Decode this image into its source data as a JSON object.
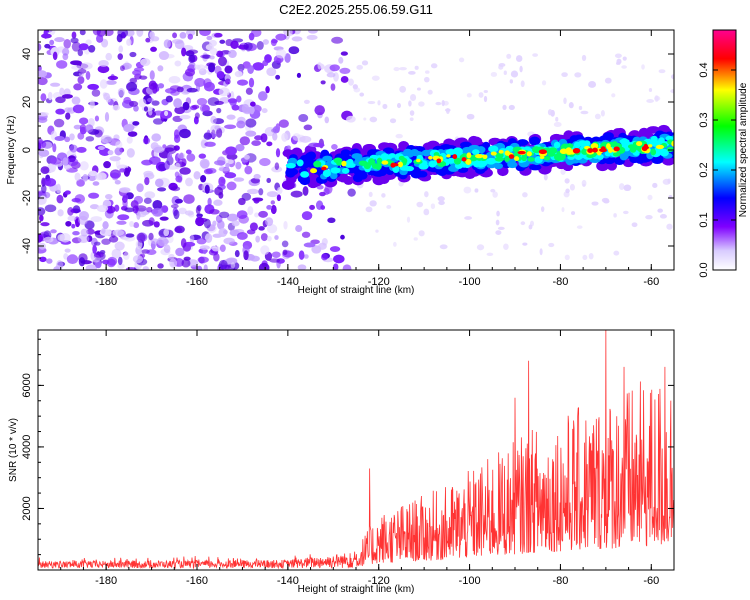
{
  "chart_data": [
    {
      "type": "heatmap",
      "title": "C2E2.2025.255.06.59.G11",
      "xlabel": "Height of straight line (km)",
      "ylabel": "Frequency (Hz)",
      "xlim": [
        -195,
        -55
      ],
      "ylim": [
        -50,
        50
      ],
      "xticks": [
        -180,
        -160,
        -140,
        -120,
        -100,
        -80,
        -60
      ],
      "yticks": [
        -40,
        -20,
        0,
        20,
        40
      ],
      "colorbar": {
        "label": "Normalized spectral amplitude",
        "range": [
          0.0,
          0.48
        ],
        "ticks": [
          0.0,
          0.1,
          0.2,
          0.3,
          0.4
        ],
        "colors": [
          "#ffffff",
          "#7f00ff",
          "#0000ff",
          "#00ffff",
          "#00ff00",
          "#ffff00",
          "#ff0000",
          "#ff0090"
        ]
      },
      "signal_band": {
        "x_start": -140,
        "x_end": -55,
        "center_start": -8,
        "center_end": 2,
        "halfwidth": 7,
        "peak_amplitude": 0.45
      }
    },
    {
      "type": "line",
      "xlabel": "Height of straight line (km)",
      "ylabel": "SNR (10 * v/v)",
      "xlim": [
        -195,
        -55
      ],
      "ylim": [
        0,
        7800
      ],
      "xticks": [
        -180,
        -160,
        -140,
        -120,
        -100,
        -80,
        -60
      ],
      "yticks": [
        2000,
        4000,
        6000
      ],
      "color": "#ff3333",
      "envelope": [
        {
          "x": -195,
          "y": 250
        },
        {
          "x": -140,
          "y": 300
        },
        {
          "x": -125,
          "y": 600
        },
        {
          "x": -120,
          "y": 1500
        },
        {
          "x": -105,
          "y": 2200
        },
        {
          "x": -95,
          "y": 3000
        },
        {
          "x": -85,
          "y": 3800
        },
        {
          "x": -75,
          "y": 4300
        },
        {
          "x": -65,
          "y": 4800
        },
        {
          "x": -55,
          "y": 5200
        }
      ],
      "peaks": [
        {
          "x": -122,
          "y": 3300
        },
        {
          "x": -90,
          "y": 5600
        },
        {
          "x": -87,
          "y": 6800
        },
        {
          "x": -70,
          "y": 7800
        },
        {
          "x": -66,
          "y": 6600
        },
        {
          "x": -57,
          "y": 6600
        }
      ]
    }
  ]
}
